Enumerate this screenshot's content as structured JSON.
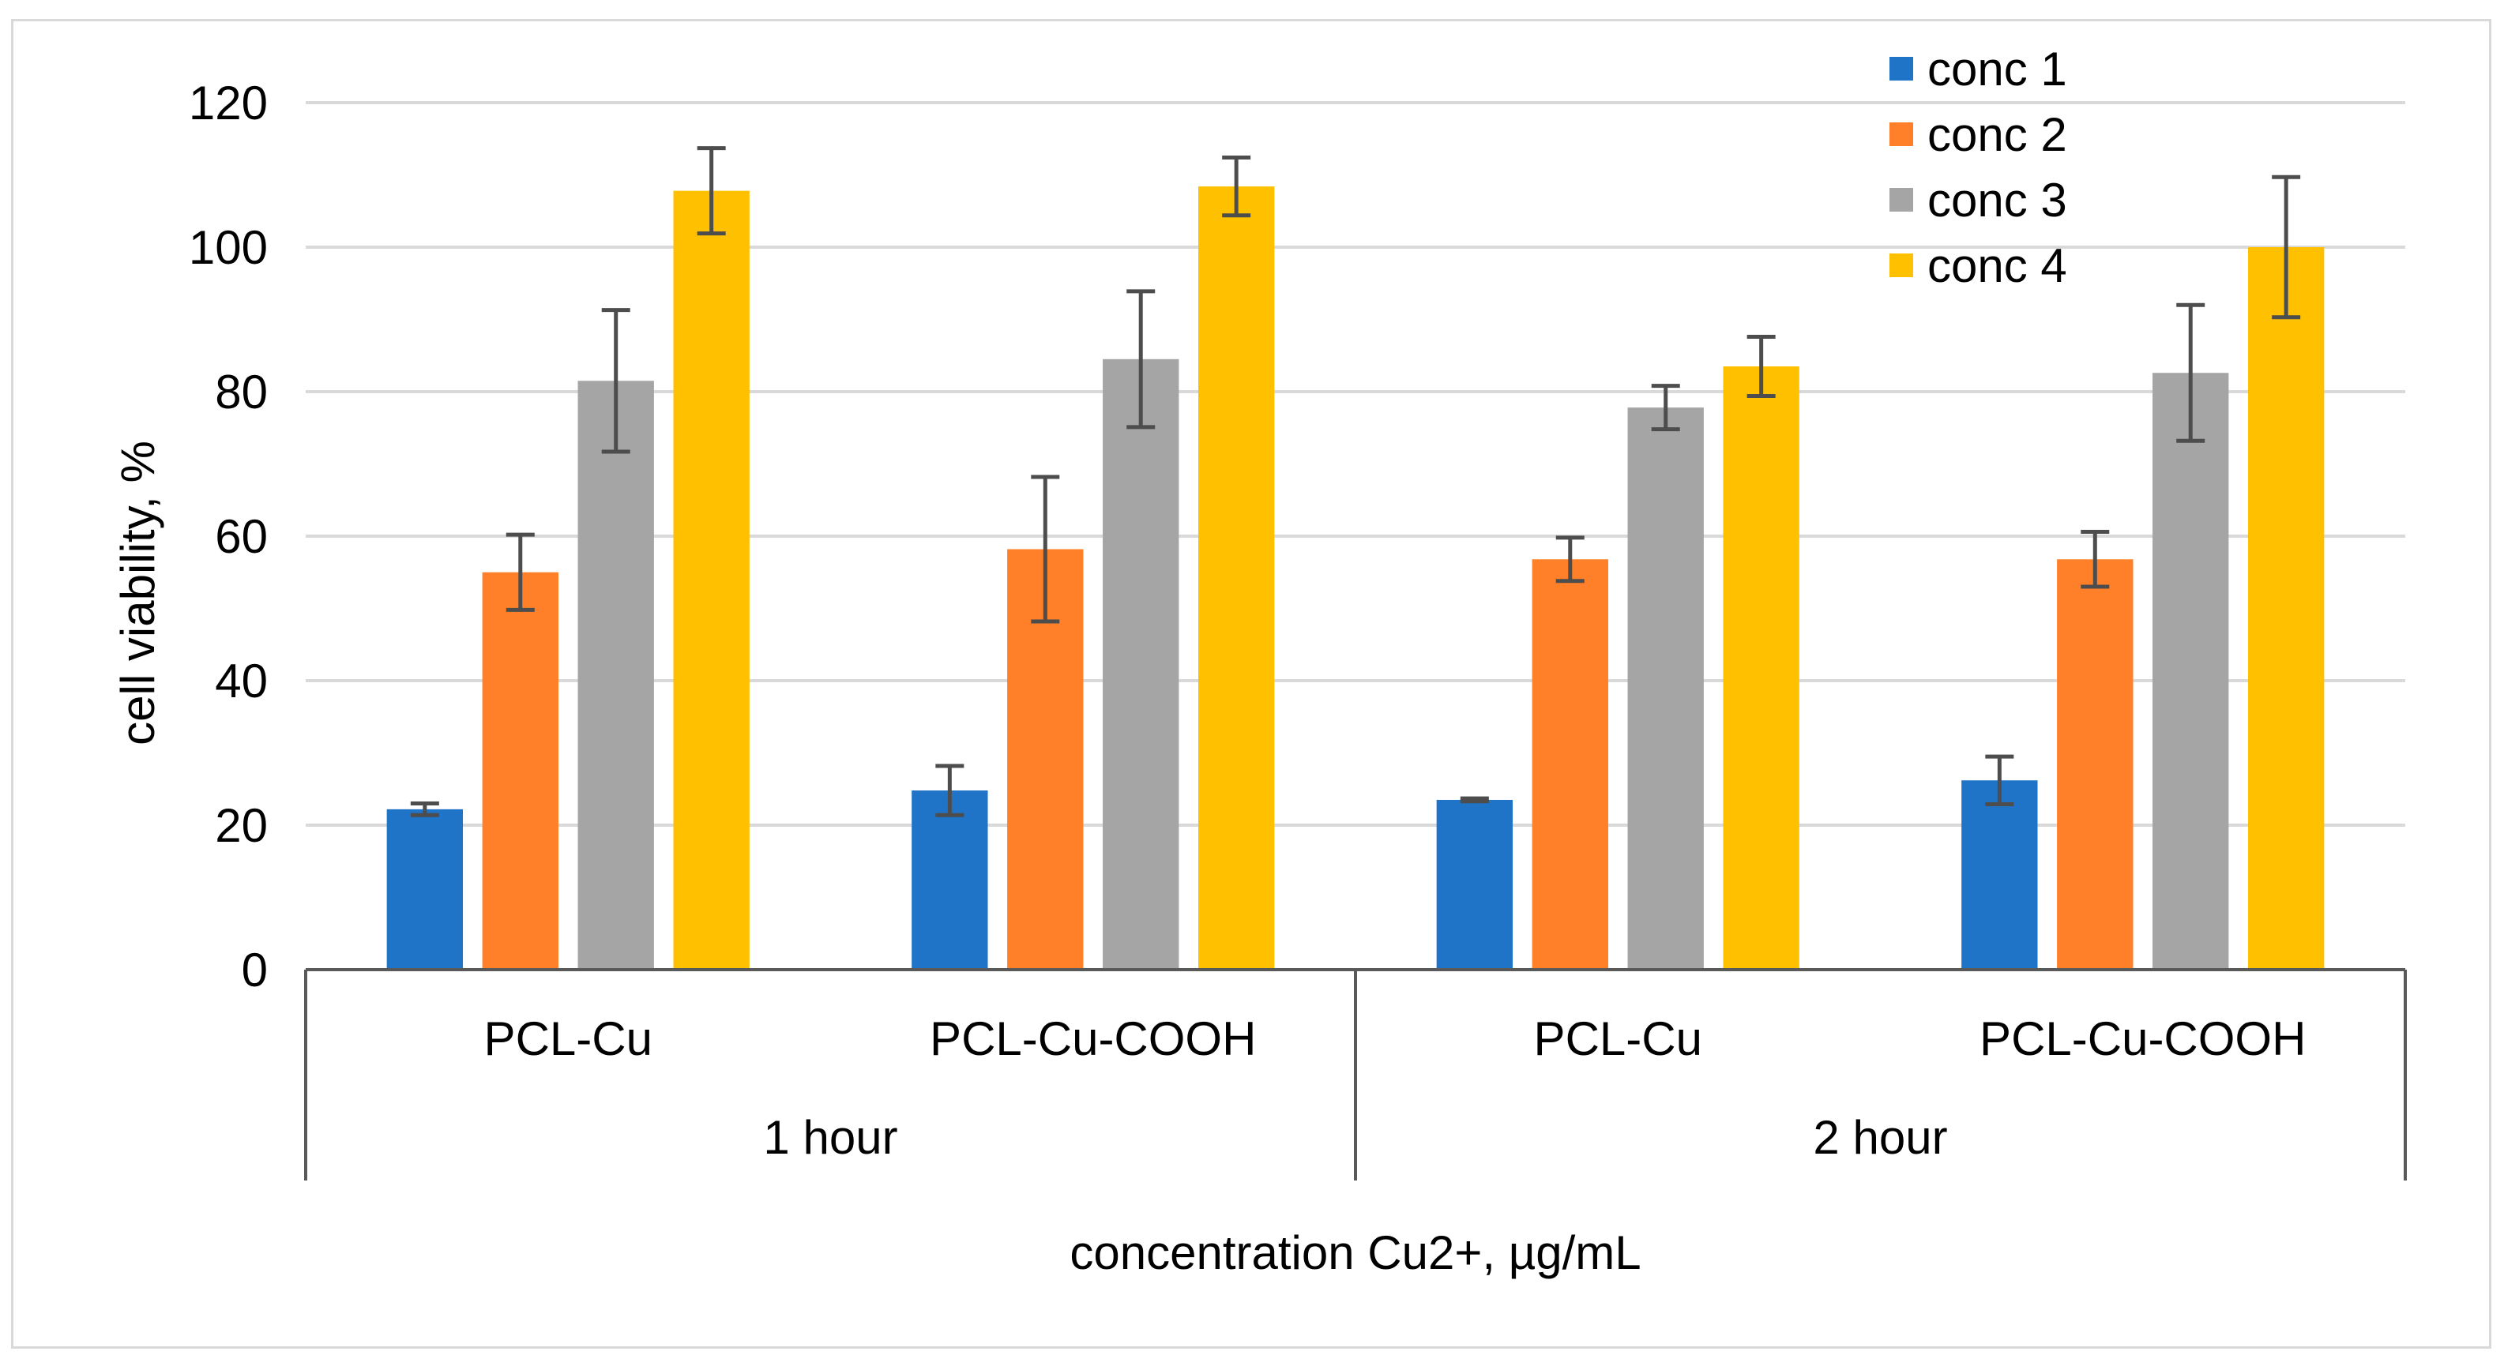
{
  "chart_data": {
    "type": "bar",
    "xlabel": "concentration Cu2+, µg/mL",
    "ylabel": "cell viability, %",
    "ylim": [
      0,
      120
    ],
    "yticks": [
      0,
      20,
      40,
      60,
      80,
      100,
      120
    ],
    "grid": true,
    "legend_position": "top-right",
    "groups": [
      {
        "label": "1 hour",
        "categories": [
          "PCL-Cu",
          "PCL-Cu-COOH"
        ]
      },
      {
        "label": "2 hour",
        "categories": [
          "PCL-Cu",
          "PCL-Cu-COOH"
        ]
      }
    ],
    "series": [
      {
        "name": "conc 1",
        "color": "#1f74c8",
        "values": [
          22.2,
          24.8,
          23.5,
          26.2
        ],
        "errors": [
          0.8,
          3.4,
          0.2,
          3.3
        ]
      },
      {
        "name": "conc 2",
        "color": "#ff8028",
        "values": [
          55.0,
          58.2,
          56.8,
          56.8
        ],
        "errors": [
          5.2,
          10.0,
          3.0,
          3.8
        ]
      },
      {
        "name": "conc 3",
        "color": "#a5a5a5",
        "values": [
          81.5,
          84.5,
          77.8,
          82.6
        ],
        "errors": [
          9.8,
          9.4,
          3.0,
          9.4
        ]
      },
      {
        "name": "conc 4",
        "color": "#ffc000",
        "values": [
          107.8,
          108.4,
          83.5,
          100.0
        ],
        "errors": [
          5.9,
          4.0,
          4.1,
          9.7
        ]
      }
    ],
    "colors": {
      "grid": "#d9d9d9",
      "axis": "#595959",
      "error_bar": "#4d4d4d"
    }
  }
}
